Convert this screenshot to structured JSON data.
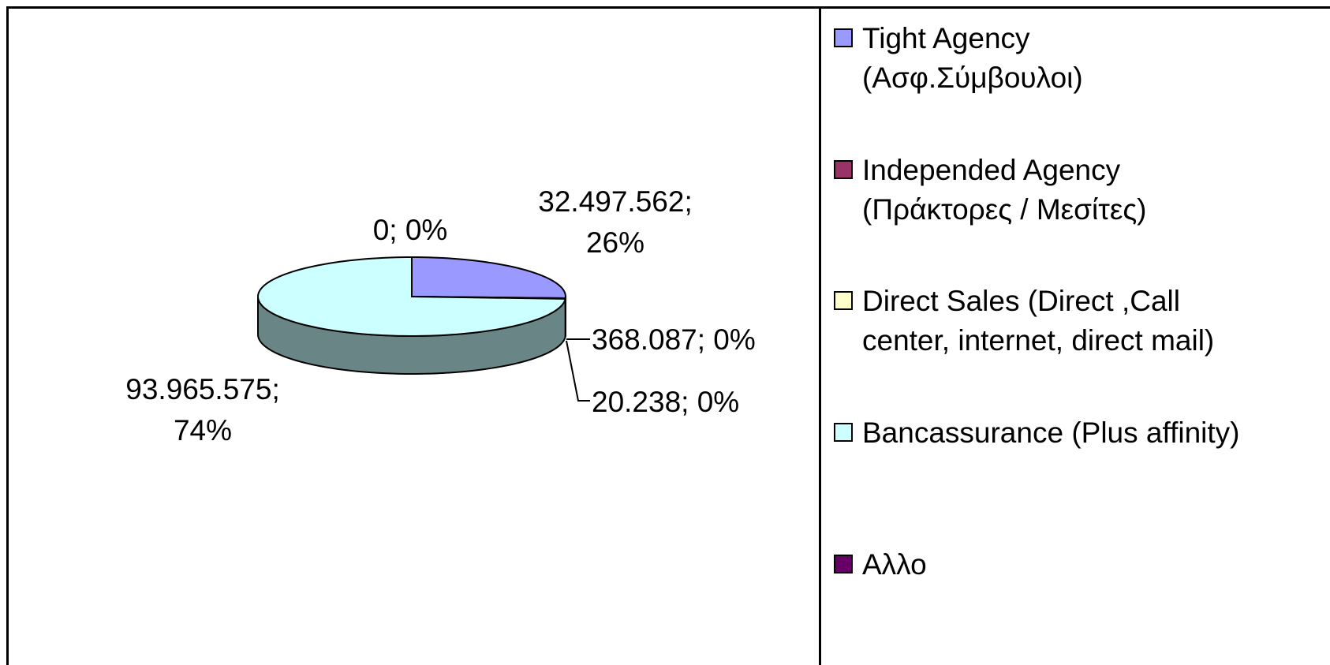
{
  "chart_data": {
    "type": "pie",
    "categories": [
      "Tight Agency (Ασφ.Σύμβουλοι)",
      "Independed Agency (Πράκτορες / Μεσίτες)",
      "Direct Sales (Direct ,Call center, internet, direct mail)",
      "Bancassurance (Plus affinity)",
      "Αλλο"
    ],
    "values": [
      32497562,
      368087,
      20238,
      93965575,
      0
    ],
    "value_labels": [
      "32.497.562; 26%",
      "368.087; 0%",
      "20.238; 0%",
      "93.965.575; 74%",
      "0; 0%"
    ],
    "colors": [
      "#9999ff",
      "#993366",
      "#ffffcc",
      "#ccffff",
      "#660066"
    ],
    "legend": "right"
  }
}
